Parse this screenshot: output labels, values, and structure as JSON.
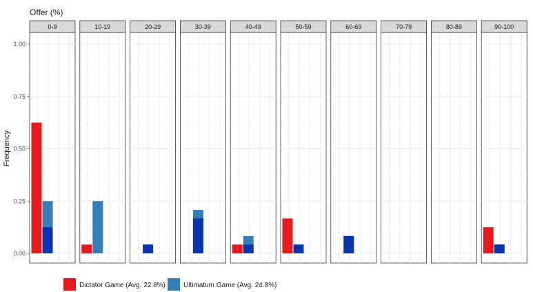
{
  "chart_data": {
    "type": "bar",
    "title": "Offer (%)",
    "ylabel": "Frequency",
    "ylim": [
      0,
      1.08
    ],
    "yticks": [
      "0.00",
      "0.25",
      "0.50",
      "0.75",
      "1.00"
    ],
    "ytick_values": [
      0,
      0.25,
      0.5,
      0.75,
      1.0
    ],
    "facets": [
      "0-9",
      "10-19",
      "20-29",
      "30-39",
      "40-49",
      "50-59",
      "60-69",
      "70-79",
      "80-89",
      "90-100"
    ],
    "series": [
      {
        "name": "Dictator Game (Avg. 22.8%)",
        "color": "#e41a1c",
        "values": [
          0.625,
          0.042,
          0,
          0,
          0.042,
          0.167,
          0,
          0,
          0,
          0.125
        ]
      },
      {
        "name": "Ultimatum Game (Avg. 24.8%)",
        "color": "#377eb8",
        "values": [
          0.25,
          0.25,
          0.042,
          0.208,
          0.083,
          0.042,
          0.083,
          0,
          0,
          0.042
        ],
        "inner_values": [
          0.125,
          0,
          0.042,
          0.167,
          0.042,
          0.042,
          0.083,
          0,
          0,
          0.042
        ],
        "inner_color": "#0a33b0"
      }
    ],
    "grid": true,
    "legend_position": "bottom"
  }
}
